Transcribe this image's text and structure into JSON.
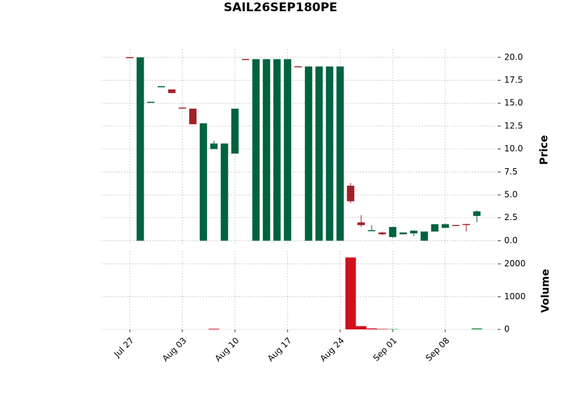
{
  "chart_data": {
    "type": "candlestick",
    "title": "SAIL26SEP180PE",
    "ylabel": "Price",
    "y2label": "Volume",
    "open": [
      20.02,
      0,
      15.05,
      16.75,
      16.5,
      14.52,
      14.4,
      0,
      10.0,
      0,
      9.5,
      19.82,
      0,
      0,
      0,
      0,
      19.02,
      0,
      0,
      0,
      0,
      6.0,
      2.0,
      1.05,
      0.9,
      0.4,
      0.7,
      0.8,
      0,
      1.0,
      1.4,
      1.72,
      1.82,
      2.7
    ],
    "high": [
      20.02,
      20.0,
      15.15,
      16.85,
      16.5,
      14.52,
      14.4,
      12.8,
      10.9,
      10.6,
      14.4,
      19.82,
      19.8,
      19.8,
      19.8,
      19.8,
      19.02,
      19.0,
      19.0,
      19.0,
      19.0,
      6.3,
      2.8,
      1.7,
      1.0,
      1.5,
      0.9,
      1.1,
      1.0,
      1.8,
      1.9,
      1.72,
      1.82,
      3.3
    ],
    "low": [
      20.0,
      0,
      15.05,
      16.75,
      16.1,
      14.48,
      12.7,
      0,
      10.0,
      0,
      9.5,
      19.78,
      0,
      0,
      0,
      0,
      18.98,
      0,
      0,
      0,
      0,
      4.1,
      1.5,
      1.05,
      0.6,
      0.3,
      0.7,
      0.5,
      0,
      1.0,
      1.4,
      1.68,
      1.0,
      2.0
    ],
    "close": [
      20.0,
      20.0,
      15.15,
      16.85,
      16.1,
      14.48,
      12.7,
      12.8,
      10.6,
      10.6,
      14.4,
      19.78,
      19.8,
      19.8,
      19.8,
      19.8,
      18.98,
      19.0,
      19.0,
      19.0,
      19.0,
      4.3,
      1.7,
      1.15,
      0.7,
      1.5,
      0.9,
      1.1,
      1.0,
      1.8,
      1.8,
      1.68,
      1.78,
      3.2
    ],
    "volume": [
      0,
      0,
      0,
      0,
      0,
      0,
      0,
      0,
      20,
      0,
      0,
      0,
      0,
      0,
      0,
      0,
      0,
      0,
      0,
      0,
      0,
      2200,
      100,
      30,
      15,
      10,
      0,
      0,
      0,
      0,
      0,
      0,
      0,
      30
    ],
    "up_color": "#006340",
    "down_color": "#a02128",
    "volume_up_color": "#1a8a3a",
    "volume_down_color": "#d0101c",
    "xlim": [
      -2.67,
      35
    ],
    "xticks": [
      {
        "value": 0,
        "label": "Jul 27"
      },
      {
        "value": 5,
        "label": "Aug 03"
      },
      {
        "value": 10,
        "label": "Aug 10"
      },
      {
        "value": 15,
        "label": "Aug 17"
      },
      {
        "value": 20,
        "label": "Aug 24"
      },
      {
        "value": 25,
        "label": "Sep 01"
      },
      {
        "value": 30,
        "label": "Sep 08"
      }
    ],
    "ylim": [
      -0.5,
      20.9
    ],
    "yticks": [
      {
        "value": 0,
        "label": "0.0"
      },
      2.5,
      {
        "value": 5,
        "label": "5.0"
      },
      7.5,
      {
        "value": 10,
        "label": "10.0"
      },
      12.5,
      {
        "value": 15,
        "label": "15.0"
      },
      17.5,
      {
        "value": 20,
        "label": "20.0"
      }
    ],
    "y2lim": [
      0,
      2400
    ],
    "y2ticks": [
      0,
      1000,
      2000
    ],
    "grid": true
  }
}
